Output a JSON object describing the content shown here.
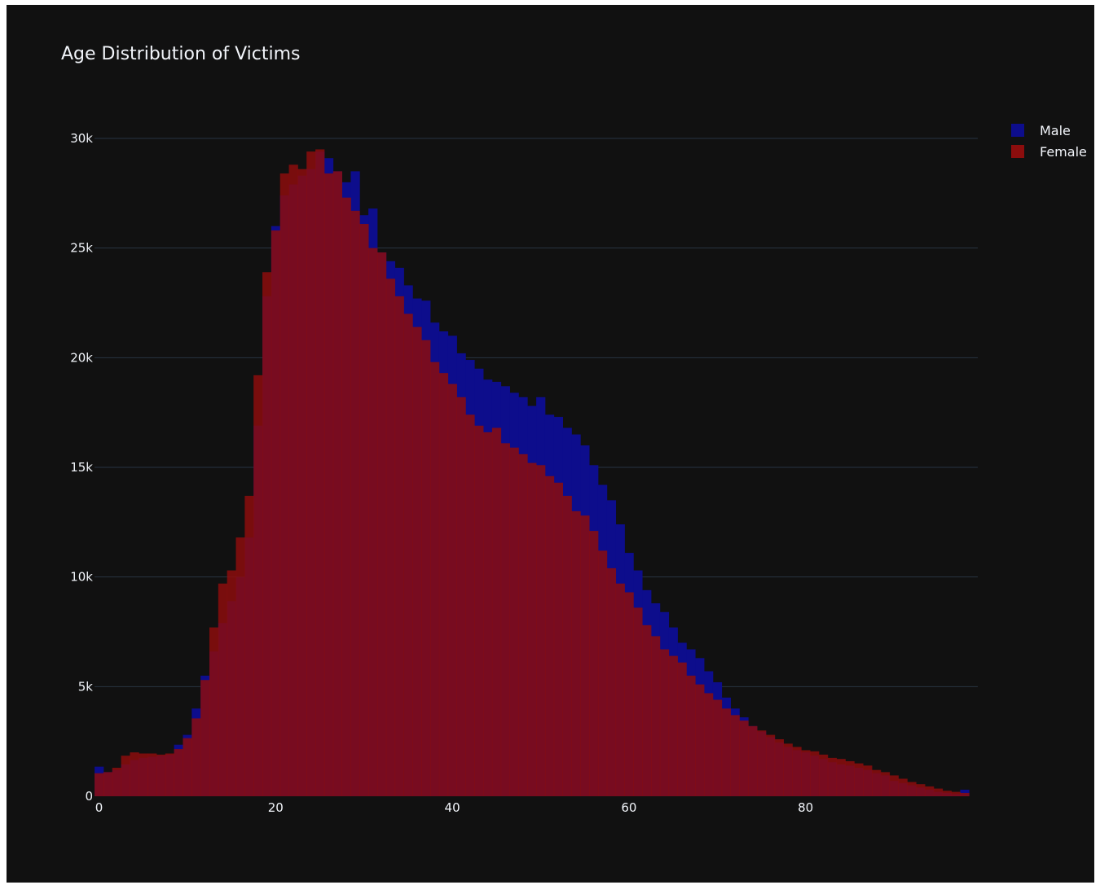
{
  "chart_data": {
    "type": "bar",
    "title": "Age Distribution of Victims",
    "xlabel": "",
    "ylabel": "",
    "bin_width": 1,
    "xlim": [
      0,
      99
    ],
    "ylim": [
      0,
      32000
    ],
    "x_ticks": [
      0,
      20,
      40,
      60,
      80
    ],
    "x_tick_labels": [
      "0",
      "20",
      "40",
      "60",
      "80"
    ],
    "y_ticks": [
      0,
      5000,
      10000,
      15000,
      20000,
      25000,
      30000
    ],
    "y_tick_labels": [
      "0",
      "5k",
      "10k",
      "15k",
      "20k",
      "25k",
      "30k"
    ],
    "grid": true,
    "barmode": "overlay",
    "legend_position": "top-right",
    "x": [
      0,
      1,
      2,
      3,
      4,
      5,
      6,
      7,
      8,
      9,
      10,
      11,
      12,
      13,
      14,
      15,
      16,
      17,
      18,
      19,
      20,
      21,
      22,
      23,
      24,
      25,
      26,
      27,
      28,
      29,
      30,
      31,
      32,
      33,
      34,
      35,
      36,
      37,
      38,
      39,
      40,
      41,
      42,
      43,
      44,
      45,
      46,
      47,
      48,
      49,
      50,
      51,
      52,
      53,
      54,
      55,
      56,
      57,
      58,
      59,
      60,
      61,
      62,
      63,
      64,
      65,
      66,
      67,
      68,
      69,
      70,
      71,
      72,
      73,
      74,
      75,
      76,
      77,
      78,
      79,
      80,
      81,
      82,
      83,
      84,
      85,
      86,
      87,
      88,
      89,
      90,
      91,
      92,
      93,
      94,
      95,
      96,
      97,
      98
    ],
    "series": [
      {
        "name": "Male",
        "color": "#0d0d8c",
        "values": [
          1350,
          1100,
          1200,
          1450,
          1650,
          1750,
          1800,
          1850,
          1900,
          2350,
          2800,
          4000,
          5500,
          6600,
          7900,
          8900,
          10000,
          11800,
          16900,
          22800,
          26000,
          27400,
          27900,
          28300,
          28600,
          29400,
          29100,
          28500,
          28000,
          28500,
          26500,
          26800,
          24800,
          24400,
          24100,
          23300,
          22700,
          22600,
          21600,
          21200,
          21000,
          20200,
          19900,
          19500,
          19000,
          18900,
          18700,
          18400,
          18200,
          17800,
          18200,
          17400,
          17300,
          16800,
          16500,
          16000,
          15100,
          14200,
          13500,
          12400,
          11100,
          10300,
          9400,
          8800,
          8400,
          7700,
          7000,
          6700,
          6300,
          5700,
          5200,
          4500,
          4000,
          3600,
          3200,
          2950,
          2700,
          2450,
          2250,
          2100,
          2000,
          1850,
          1700,
          1550,
          1450,
          1400,
          1300,
          1200,
          1050,
          950,
          700,
          600,
          500,
          400,
          300,
          200,
          150,
          100,
          300
        ]
      },
      {
        "name": "Female",
        "color": "#8c0d0d",
        "values": [
          1050,
          1100,
          1300,
          1850,
          2000,
          1950,
          1950,
          1900,
          1950,
          2150,
          2650,
          3550,
          5300,
          7700,
          9700,
          10300,
          11800,
          13700,
          19200,
          23900,
          25800,
          28400,
          28800,
          28600,
          29400,
          29500,
          28400,
          28500,
          27300,
          26700,
          26100,
          25000,
          24800,
          23600,
          22800,
          22000,
          21400,
          20800,
          19800,
          19300,
          18800,
          18200,
          17400,
          16900,
          16600,
          16800,
          16100,
          15900,
          15600,
          15200,
          15100,
          14600,
          14300,
          13700,
          13000,
          12800,
          12100,
          11200,
          10400,
          9700,
          9300,
          8600,
          7800,
          7300,
          6700,
          6400,
          6100,
          5500,
          5100,
          4700,
          4400,
          4000,
          3700,
          3450,
          3200,
          3000,
          2800,
          2600,
          2400,
          2250,
          2100,
          2050,
          1900,
          1750,
          1700,
          1600,
          1500,
          1400,
          1200,
          1100,
          950,
          800,
          650,
          550,
          450,
          350,
          250,
          200,
          150
        ]
      }
    ]
  }
}
